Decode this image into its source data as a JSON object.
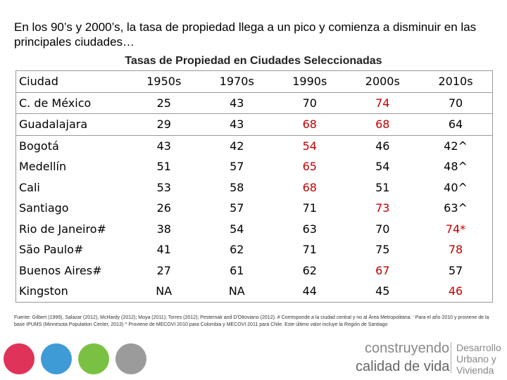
{
  "header": {
    "title": "En los 90’s y 2000’s, la tasa de propiedad llega a un pico y comienza a disminuir en las principales ciudades…"
  },
  "table": {
    "title": "Tasas de Propiedad en Ciudades Seleccionadas",
    "columns": [
      "Ciudad",
      "1950s",
      "1970s",
      "1990s",
      "2000s",
      "2010s"
    ],
    "rows": [
      {
        "cells": [
          "C. de México",
          "25",
          "43",
          "70",
          "74",
          "70"
        ],
        "colors": [
          "#000",
          "#000",
          "#000",
          "#000",
          "#c00000",
          "#000"
        ]
      },
      {
        "cells": [
          "Guadalajara",
          "29",
          "43",
          "68",
          "68",
          "64"
        ],
        "colors": [
          "#000",
          "#000",
          "#000",
          "#c00000",
          "#c00000",
          "#000"
        ]
      },
      {
        "cells": [
          "Bogotá",
          "43",
          "42",
          "54",
          "46",
          "42^"
        ],
        "colors": [
          "#000",
          "#000",
          "#000",
          "#c00000",
          "#000",
          "#000"
        ]
      },
      {
        "cells": [
          "Medellín",
          "51",
          "57",
          "65",
          "54",
          "48^"
        ],
        "colors": [
          "#000",
          "#000",
          "#000",
          "#c00000",
          "#000",
          "#000"
        ]
      },
      {
        "cells": [
          "Cali",
          "53",
          "58",
          "68",
          "51",
          "40^"
        ],
        "colors": [
          "#000",
          "#000",
          "#000",
          "#c00000",
          "#000",
          "#000"
        ]
      },
      {
        "cells": [
          "Santiago",
          "26",
          "57",
          "71",
          "73",
          "63^"
        ],
        "colors": [
          "#000",
          "#000",
          "#000",
          "#000",
          "#c00000",
          "#000"
        ]
      },
      {
        "cells": [
          "Rio de Janeiro#",
          "38",
          "54",
          "63",
          "70",
          "74*"
        ],
        "colors": [
          "#000",
          "#000",
          "#000",
          "#000",
          "#000",
          "#c00000"
        ]
      },
      {
        "cells": [
          "São Paulo#",
          "41",
          "62",
          "71",
          "75",
          "78"
        ],
        "colors": [
          "#000",
          "#000",
          "#000",
          "#000",
          "#000",
          "#c00000"
        ]
      },
      {
        "cells": [
          "Buenos Aires#",
          "27",
          "61",
          "62",
          "67",
          "57"
        ],
        "colors": [
          "#000",
          "#000",
          "#000",
          "#000",
          "#c00000",
          "#000"
        ]
      },
      {
        "cells": [
          "Kingston",
          "NA",
          "NA",
          "44",
          "45",
          "46"
        ],
        "colors": [
          "#000",
          "#000",
          "#000",
          "#000",
          "#000",
          "#c00000"
        ]
      }
    ]
  },
  "footnote": "Fuente: Gilbert (1999), Salazar (2012), McHardy (2012); Moya (2011); Torres (2012); Pesternak and D'Ottoviano (2012). # Corresponde a la ciudad central y no al Área Metropolitana. ' Para el año 2010 y proviene de la base IPUMS (Minnesota Population Center, 2013) ^ Proviene de MECOVI 2010 para Colombia y MECOVI 2011 para Chile. Este último valor incluye la Región de Santiago",
  "logo": {
    "line1": "construyendo",
    "line2": "calidad de vida",
    "org1": "Desarrollo",
    "org2": "Urbano y",
    "org3": "Vivienda"
  }
}
